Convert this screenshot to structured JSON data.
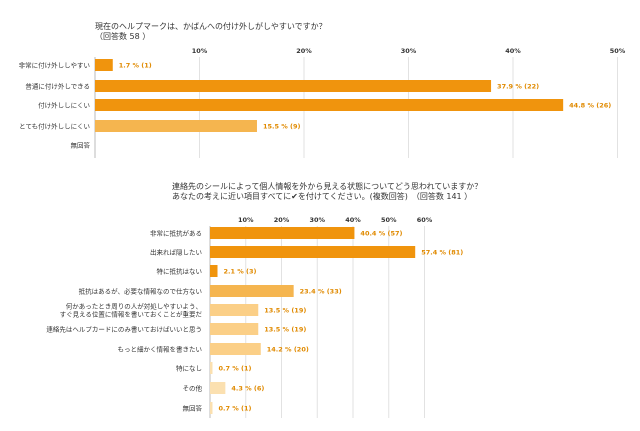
{
  "chart_data": [
    {
      "type": "bar",
      "orientation": "horizontal",
      "title_lines": [
        "現在のヘルプマークは、かばんへの付け外しがしやすいですか？",
        "（回答数 58 ）"
      ],
      "categories": [
        "非常に付け外ししやすい",
        "普通に付け外しできる",
        "付け外ししにくい",
        "とても付け外ししにくい",
        "無回答"
      ],
      "values": [
        1.7,
        37.9,
        44.8,
        15.5,
        null
      ],
      "value_labels": [
        "1.7 % (1)",
        "37.9 % (22)",
        "44.8 % (26)",
        "15.5 % (9)",
        ""
      ],
      "bar_colors": [
        "#f0940d",
        "#f0940d",
        "#f0940d",
        "#f5b54f",
        "#f5b54f"
      ],
      "xlim": [
        0,
        50
      ],
      "ticks": [
        10,
        20,
        30,
        40,
        50
      ],
      "tick_labels": [
        "10%",
        "20%",
        "30%",
        "40%",
        "50%"
      ],
      "grid": true
    },
    {
      "type": "bar",
      "orientation": "horizontal",
      "title_lines": [
        "連絡先のシールによって個人情報を外から見える状態についてどう思われていますか？",
        "あなたの考えに近い項目すべてに✔を付けてください。(複数回答)　（回答数 141 ）"
      ],
      "categories": [
        [
          "非常に抵抗がある"
        ],
        [
          "出来れば隠したい"
        ],
        [
          "特に抵抗はない"
        ],
        [
          "抵抗はあるが、必要な情報なので仕方ない"
        ],
        [
          "何かあったとき周りの人が対処しやすいよう、",
          "すぐ見える位置に情報を書いておくことが重要だ"
        ],
        [
          "連絡先はヘルプカードにのみ書いておけばいいと思う"
        ],
        [
          "もっと細かく情報を書きたい"
        ],
        [
          "特になし"
        ],
        [
          "その他"
        ],
        [
          "無回答"
        ]
      ],
      "values": [
        40.4,
        57.4,
        2.1,
        23.4,
        13.5,
        13.5,
        14.2,
        0.7,
        4.3,
        0.7
      ],
      "value_labels": [
        "40.4 % (57)",
        "57.4 % (81)",
        "2.1 % (3)",
        "23.4 % (33)",
        "13.5 % (19)",
        "13.5 % (19)",
        "14.2 % (20)",
        "0.7 % (1)",
        "4.3 % (6)",
        "0.7 % (1)"
      ],
      "bar_colors": [
        "#f0940d",
        "#f0940d",
        "#f0940d",
        "#f5b54f",
        "#fbcf87",
        "#fbcf87",
        "#fbcf87",
        "#fbe0b0",
        "#fbe0b0",
        "#fbe0b0"
      ],
      "xlim": [
        0,
        60
      ],
      "ticks": [
        10,
        20,
        30,
        40,
        50,
        60
      ],
      "tick_labels": [
        "10%",
        "20%",
        "30%",
        "40%",
        "50%",
        "60%"
      ],
      "grid": true
    }
  ]
}
